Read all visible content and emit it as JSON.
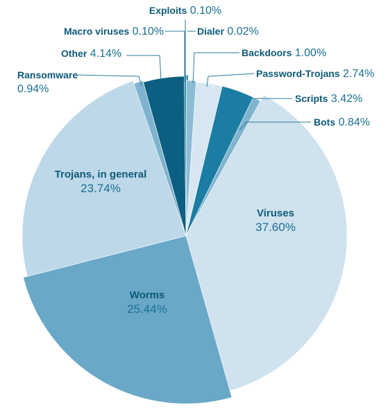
{
  "chart_data": {
    "type": "pie",
    "title": "",
    "value_suffix": "%",
    "slices": [
      {
        "name": "Exploits",
        "value": 0.1,
        "label": "0.10%",
        "color": "#0c5f80"
      },
      {
        "name": "Dialer",
        "value": 0.02,
        "label": "0.02%",
        "color": "#1f7fa5"
      },
      {
        "name": "Backdoors",
        "value": 1.0,
        "label": "1.00%",
        "color": "#8dbcd4"
      },
      {
        "name": "Password-Trojans",
        "value": 2.74,
        "label": "2.74%",
        "color": "#d7e7f1"
      },
      {
        "name": "Scripts",
        "value": 3.42,
        "label": "3.42%",
        "color": "#1b7da3"
      },
      {
        "name": "Bots",
        "value": 0.84,
        "label": "0.84%",
        "color": "#7fb3cf"
      },
      {
        "name": "Viruses",
        "value": 37.6,
        "label": "37.60%",
        "color": "#cfe2ee"
      },
      {
        "name": "Worms",
        "value": 25.44,
        "label": "25.44%",
        "color": "#6aa8c8"
      },
      {
        "name": "Trojans, in general",
        "value": 23.74,
        "label": "23.74%",
        "color": "#bdd8e8"
      },
      {
        "name": "Ransomware",
        "value": 0.94,
        "label": "0.94%",
        "color": "#7fb3cf"
      },
      {
        "name": "Other",
        "value": 4.14,
        "label": "4.14%",
        "color": "#0c5f80"
      },
      {
        "name": "Macro viruses",
        "value": 0.1,
        "label": "0.10%",
        "color": "#1f7fa5"
      }
    ]
  }
}
